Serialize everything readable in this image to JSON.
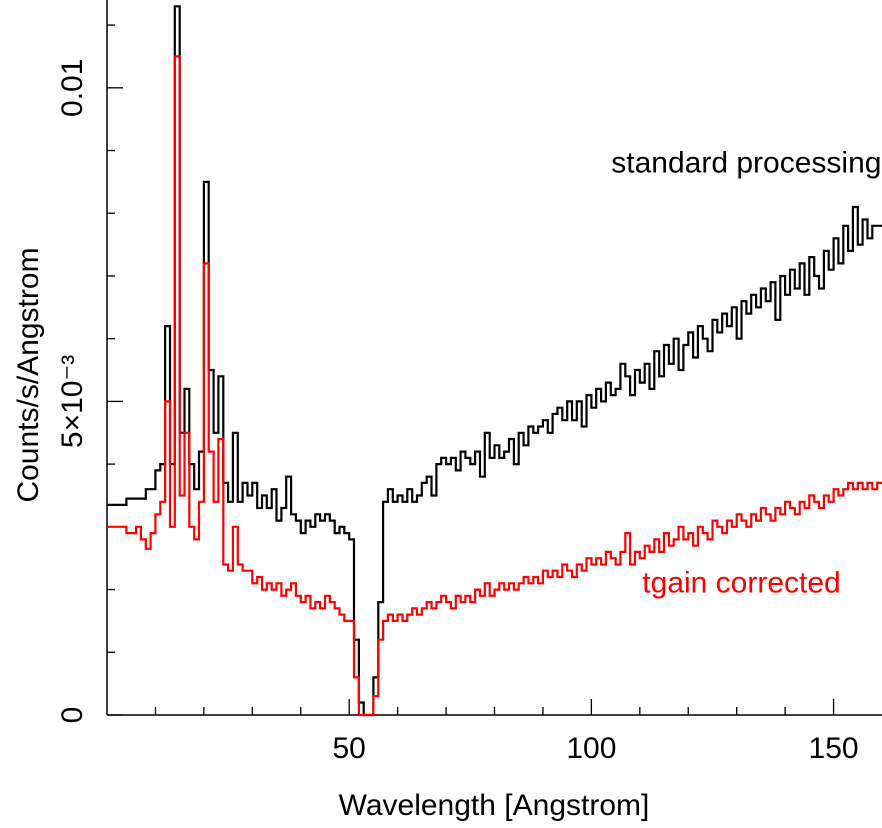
{
  "chart_data": {
    "type": "line",
    "title": "",
    "xlabel": "Wavelength [Angstrom]",
    "ylabel": "Counts/s/Angstrom",
    "xlim": [
      0,
      160
    ],
    "ylim": [
      0,
      0.0114
    ],
    "grid": false,
    "x_ticks": [
      {
        "value": 50,
        "label": "50"
      },
      {
        "value": 100,
        "label": "100"
      },
      {
        "value": 150,
        "label": "150"
      }
    ],
    "y_ticks": [
      {
        "value": 0,
        "label": "0"
      },
      {
        "value": 0.005,
        "label": "5×10⁻³"
      },
      {
        "value": 0.01,
        "label": "0.01"
      }
    ],
    "series": [
      {
        "name": "standard processing",
        "color": "#000000",
        "points": [
          [
            0,
            0.00335
          ],
          [
            4,
            0.00345
          ],
          [
            8,
            0.0036
          ],
          [
            10,
            0.0039
          ],
          [
            11,
            0.004
          ],
          [
            12,
            0.0062
          ],
          [
            13,
            0.004
          ],
          [
            14,
            0.0113
          ],
          [
            15,
            0.0045
          ],
          [
            16,
            0.0052
          ],
          [
            17,
            0.004
          ],
          [
            18,
            0.0036
          ],
          [
            19,
            0.0042
          ],
          [
            20,
            0.0085
          ],
          [
            21,
            0.0055
          ],
          [
            22,
            0.0045
          ],
          [
            23,
            0.0054
          ],
          [
            24,
            0.0037
          ],
          [
            25,
            0.0034
          ],
          [
            26,
            0.0045
          ],
          [
            27,
            0.0034
          ],
          [
            28,
            0.0037
          ],
          [
            29,
            0.0035
          ],
          [
            30,
            0.0037
          ],
          [
            31,
            0.0033
          ],
          [
            32,
            0.0035
          ],
          [
            33,
            0.0033
          ],
          [
            34,
            0.0036
          ],
          [
            35,
            0.0031
          ],
          [
            36,
            0.0033
          ],
          [
            37,
            0.0038
          ],
          [
            38,
            0.0032
          ],
          [
            39,
            0.0031
          ],
          [
            40,
            0.0029
          ],
          [
            41,
            0.0031
          ],
          [
            42,
            0.003
          ],
          [
            43,
            0.0032
          ],
          [
            44,
            0.0031
          ],
          [
            45,
            0.0032
          ],
          [
            46,
            0.0031
          ],
          [
            47,
            0.0029
          ],
          [
            48,
            0.003
          ],
          [
            49,
            0.0029
          ],
          [
            50,
            0.0028
          ],
          [
            51,
            0.0012
          ],
          [
            52,
            0.0002
          ],
          [
            53,
            0.0
          ],
          [
            54,
            0.0
          ],
          [
            55,
            0.0006
          ],
          [
            56,
            0.0018
          ],
          [
            57,
            0.0034
          ],
          [
            58,
            0.0036
          ],
          [
            59,
            0.0034
          ],
          [
            60,
            0.0035
          ],
          [
            61,
            0.0034
          ],
          [
            62,
            0.0036
          ],
          [
            63,
            0.0034
          ],
          [
            64,
            0.0035
          ],
          [
            65,
            0.0037
          ],
          [
            66,
            0.0038
          ],
          [
            67,
            0.0035
          ],
          [
            68,
            0.004
          ],
          [
            69,
            0.0041
          ],
          [
            70,
            0.004
          ],
          [
            71,
            0.0041
          ],
          [
            72,
            0.0039
          ],
          [
            73,
            0.0042
          ],
          [
            74,
            0.0041
          ],
          [
            75,
            0.004
          ],
          [
            76,
            0.0042
          ],
          [
            77,
            0.0038
          ],
          [
            78,
            0.0045
          ],
          [
            79,
            0.0041
          ],
          [
            80,
            0.0043
          ],
          [
            81,
            0.0041
          ],
          [
            82,
            0.0042
          ],
          [
            83,
            0.0044
          ],
          [
            84,
            0.004
          ],
          [
            85,
            0.0045
          ],
          [
            86,
            0.0043
          ],
          [
            87,
            0.0046
          ],
          [
            88,
            0.0045
          ],
          [
            89,
            0.0046
          ],
          [
            90,
            0.0047
          ],
          [
            91,
            0.0045
          ],
          [
            92,
            0.0048
          ],
          [
            93,
            0.0049
          ],
          [
            94,
            0.0047
          ],
          [
            95,
            0.005
          ],
          [
            96,
            0.0047
          ],
          [
            97,
            0.005
          ],
          [
            98,
            0.0046
          ],
          [
            99,
            0.0051
          ],
          [
            100,
            0.0049
          ],
          [
            101,
            0.0052
          ],
          [
            102,
            0.005
          ],
          [
            103,
            0.0053
          ],
          [
            104,
            0.0051
          ],
          [
            105,
            0.0052
          ],
          [
            106,
            0.0056
          ],
          [
            107,
            0.0054
          ],
          [
            108,
            0.0051
          ],
          [
            109,
            0.0055
          ],
          [
            110,
            0.0053
          ],
          [
            111,
            0.0056
          ],
          [
            112,
            0.0052
          ],
          [
            113,
            0.0058
          ],
          [
            114,
            0.0054
          ],
          [
            115,
            0.0059
          ],
          [
            116,
            0.0056
          ],
          [
            117,
            0.006
          ],
          [
            118,
            0.0055
          ],
          [
            119,
            0.0059
          ],
          [
            120,
            0.0061
          ],
          [
            121,
            0.0057
          ],
          [
            122,
            0.0062
          ],
          [
            123,
            0.006
          ],
          [
            124,
            0.0058
          ],
          [
            125,
            0.0063
          ],
          [
            126,
            0.0061
          ],
          [
            127,
            0.0064
          ],
          [
            128,
            0.0062
          ],
          [
            129,
            0.0065
          ],
          [
            130,
            0.006
          ],
          [
            131,
            0.0066
          ],
          [
            132,
            0.0064
          ],
          [
            133,
            0.0067
          ],
          [
            134,
            0.0065
          ],
          [
            135,
            0.0068
          ],
          [
            136,
            0.0066
          ],
          [
            137,
            0.0069
          ],
          [
            138,
            0.0063
          ],
          [
            139,
            0.007
          ],
          [
            140,
            0.0067
          ],
          [
            141,
            0.0071
          ],
          [
            142,
            0.0068
          ],
          [
            143,
            0.0072
          ],
          [
            144,
            0.0067
          ],
          [
            145,
            0.0073
          ],
          [
            146,
            0.007
          ],
          [
            147,
            0.0068
          ],
          [
            148,
            0.0074
          ],
          [
            149,
            0.0071
          ],
          [
            150,
            0.0076
          ],
          [
            151,
            0.0072
          ],
          [
            152,
            0.0078
          ],
          [
            153,
            0.0074
          ],
          [
            154,
            0.0081
          ],
          [
            155,
            0.0075
          ],
          [
            156,
            0.0079
          ],
          [
            157,
            0.0076
          ],
          [
            158,
            0.0078
          ],
          [
            159,
            0.0078
          ]
        ]
      },
      {
        "name": "tgain corrected",
        "color": "#ff0000",
        "points": [
          [
            0,
            0.003
          ],
          [
            4,
            0.0029
          ],
          [
            6,
            0.003
          ],
          [
            7,
            0.0028
          ],
          [
            8,
            0.00265
          ],
          [
            9,
            0.0029
          ],
          [
            10,
            0.0032
          ],
          [
            11,
            0.0034
          ],
          [
            12,
            0.005
          ],
          [
            13,
            0.003
          ],
          [
            14,
            0.0105
          ],
          [
            15,
            0.0035
          ],
          [
            16,
            0.0045
          ],
          [
            17,
            0.003
          ],
          [
            18,
            0.0028
          ],
          [
            19,
            0.0034
          ],
          [
            20,
            0.0072
          ],
          [
            21,
            0.0042
          ],
          [
            22,
            0.0034
          ],
          [
            23,
            0.0044
          ],
          [
            24,
            0.0024
          ],
          [
            25,
            0.0023
          ],
          [
            26,
            0.003
          ],
          [
            27,
            0.0024
          ],
          [
            28,
            0.0023
          ],
          [
            29,
            0.0023
          ],
          [
            30,
            0.0021
          ],
          [
            31,
            0.0022
          ],
          [
            32,
            0.002
          ],
          [
            33,
            0.0021
          ],
          [
            34,
            0.002
          ],
          [
            35,
            0.0021
          ],
          [
            36,
            0.0019
          ],
          [
            37,
            0.002
          ],
          [
            38,
            0.0021
          ],
          [
            39,
            0.0019
          ],
          [
            40,
            0.0018
          ],
          [
            41,
            0.0019
          ],
          [
            42,
            0.0017
          ],
          [
            43,
            0.0018
          ],
          [
            44,
            0.0017
          ],
          [
            45,
            0.0019
          ],
          [
            46,
            0.0018
          ],
          [
            47,
            0.0017
          ],
          [
            48,
            0.0016
          ],
          [
            49,
            0.0015
          ],
          [
            50,
            0.0015
          ],
          [
            51,
            0.0006
          ],
          [
            52,
            0.0
          ],
          [
            53,
            0.0
          ],
          [
            54,
            0.0
          ],
          [
            55,
            0.0003
          ],
          [
            56,
            0.0012
          ],
          [
            57,
            0.0015
          ],
          [
            58,
            0.0016
          ],
          [
            59,
            0.0015
          ],
          [
            60,
            0.0016
          ],
          [
            61,
            0.0015
          ],
          [
            62,
            0.0016
          ],
          [
            63,
            0.0017
          ],
          [
            64,
            0.0016
          ],
          [
            65,
            0.0017
          ],
          [
            66,
            0.0018
          ],
          [
            67,
            0.0017
          ],
          [
            68,
            0.0018
          ],
          [
            69,
            0.0019
          ],
          [
            70,
            0.0018
          ],
          [
            71,
            0.0017
          ],
          [
            72,
            0.0019
          ],
          [
            73,
            0.0018
          ],
          [
            74,
            0.0019
          ],
          [
            75,
            0.0018
          ],
          [
            76,
            0.002
          ],
          [
            77,
            0.0019
          ],
          [
            78,
            0.0021
          ],
          [
            79,
            0.0019
          ],
          [
            80,
            0.002
          ],
          [
            81,
            0.0021
          ],
          [
            82,
            0.002
          ],
          [
            83,
            0.0021
          ],
          [
            84,
            0.002
          ],
          [
            85,
            0.0021
          ],
          [
            86,
            0.0022
          ],
          [
            87,
            0.0021
          ],
          [
            88,
            0.0022
          ],
          [
            89,
            0.0021
          ],
          [
            90,
            0.0023
          ],
          [
            91,
            0.0022
          ],
          [
            92,
            0.0023
          ],
          [
            93,
            0.0022
          ],
          [
            94,
            0.0024
          ],
          [
            95,
            0.0023
          ],
          [
            96,
            0.0022
          ],
          [
            97,
            0.0024
          ],
          [
            98,
            0.0023
          ],
          [
            99,
            0.0025
          ],
          [
            100,
            0.0024
          ],
          [
            101,
            0.0025
          ],
          [
            102,
            0.0024
          ],
          [
            103,
            0.0026
          ],
          [
            104,
            0.0025
          ],
          [
            105,
            0.0024
          ],
          [
            106,
            0.0026
          ],
          [
            107,
            0.0029
          ],
          [
            108,
            0.0024
          ],
          [
            109,
            0.0026
          ],
          [
            110,
            0.0025
          ],
          [
            111,
            0.0027
          ],
          [
            112,
            0.0026
          ],
          [
            113,
            0.0028
          ],
          [
            114,
            0.0026
          ],
          [
            115,
            0.0029
          ],
          [
            116,
            0.0027
          ],
          [
            117,
            0.0028
          ],
          [
            118,
            0.003
          ],
          [
            119,
            0.0028
          ],
          [
            120,
            0.0029
          ],
          [
            121,
            0.0027
          ],
          [
            122,
            0.003
          ],
          [
            123,
            0.0029
          ],
          [
            124,
            0.0028
          ],
          [
            125,
            0.0031
          ],
          [
            126,
            0.003
          ],
          [
            127,
            0.0029
          ],
          [
            128,
            0.0031
          ],
          [
            129,
            0.003
          ],
          [
            130,
            0.0032
          ],
          [
            131,
            0.0031
          ],
          [
            132,
            0.003
          ],
          [
            133,
            0.0032
          ],
          [
            134,
            0.0031
          ],
          [
            135,
            0.0033
          ],
          [
            136,
            0.0032
          ],
          [
            137,
            0.0031
          ],
          [
            138,
            0.0033
          ],
          [
            139,
            0.0032
          ],
          [
            140,
            0.0034
          ],
          [
            141,
            0.0033
          ],
          [
            142,
            0.0032
          ],
          [
            143,
            0.0034
          ],
          [
            144,
            0.0033
          ],
          [
            145,
            0.0035
          ],
          [
            146,
            0.0034
          ],
          [
            147,
            0.0033
          ],
          [
            148,
            0.0035
          ],
          [
            149,
            0.0034
          ],
          [
            150,
            0.0036
          ],
          [
            151,
            0.0035
          ],
          [
            152,
            0.0036
          ],
          [
            153,
            0.0037
          ],
          [
            154,
            0.0036
          ],
          [
            155,
            0.0037
          ],
          [
            156,
            0.0036
          ],
          [
            157,
            0.0037
          ],
          [
            158,
            0.0036
          ],
          [
            159,
            0.0037
          ]
        ]
      }
    ],
    "annotations": [
      {
        "text": "standard processing",
        "color": "#000000",
        "x": 132,
        "y": 0.00865
      },
      {
        "text": "tgain corrected",
        "color": "#ff0000",
        "x": 131,
        "y": 0.00195
      }
    ]
  }
}
